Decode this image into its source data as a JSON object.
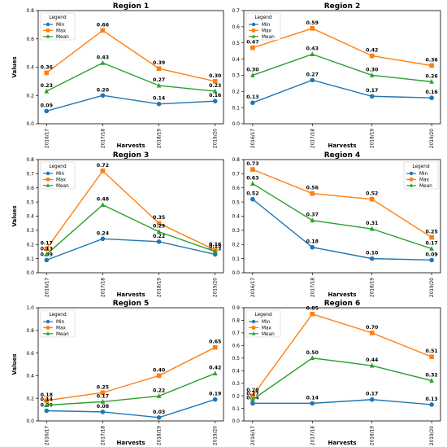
{
  "colors": {
    "min": "#1f77b4",
    "max": "#ff7f0e",
    "mean": "#2ca02c"
  },
  "chart_data": [
    {
      "type": "line",
      "title": "Region 1",
      "xlabel": "Harvests",
      "ylabel": "Values",
      "categories": [
        "2016/17",
        "2017/18",
        "2018/19",
        "2019/20"
      ],
      "ylim": [
        0,
        0.8
      ],
      "yticks": [
        "0.0",
        "0.2",
        "0.4",
        "0.6",
        "0.8"
      ],
      "legend": {
        "title": "Legend",
        "position": "top-left"
      },
      "series": [
        {
          "name": "Min",
          "values": [
            0.09,
            0.2,
            0.14,
            0.16
          ],
          "labels": [
            "0.09",
            "0.20",
            "0.14",
            "0.16"
          ]
        },
        {
          "name": "Max",
          "values": [
            0.36,
            0.66,
            0.39,
            0.3
          ],
          "labels": [
            "0.36",
            "0.66",
            "0.39",
            "0.30"
          ]
        },
        {
          "name": "Mean",
          "values": [
            0.23,
            0.43,
            0.27,
            0.23
          ],
          "labels": [
            "0.23",
            "0.43",
            "0.27",
            "0.23"
          ]
        }
      ]
    },
    {
      "type": "line",
      "title": "Region 2",
      "xlabel": "Harvests",
      "ylabel": "",
      "categories": [
        "2016/17",
        "2017/18",
        "2018/19",
        "2019/20"
      ],
      "ylim": [
        0,
        0.7
      ],
      "yticks": [
        "0.0",
        "0.1",
        "0.2",
        "0.3",
        "0.4",
        "0.5",
        "0.6",
        "0.7"
      ],
      "legend": {
        "title": "Legend",
        "position": "top-left"
      },
      "series": [
        {
          "name": "Min",
          "values": [
            0.13,
            0.27,
            0.17,
            0.16
          ],
          "labels": [
            "0.13",
            "0.27",
            "0.17",
            "0.16"
          ]
        },
        {
          "name": "Max",
          "values": [
            0.47,
            0.59,
            0.42,
            0.36
          ],
          "labels": [
            "0.47",
            "0.59",
            "0.42",
            "0.36"
          ]
        },
        {
          "name": "Mean",
          "values": [
            0.3,
            0.43,
            0.3,
            0.26
          ],
          "labels": [
            "0.30",
            "0.43",
            "0.30",
            "0.26"
          ]
        }
      ]
    },
    {
      "type": "line",
      "title": "Region 3",
      "xlabel": "Harvests",
      "ylabel": "Values",
      "categories": [
        "2016/17",
        "2017/18",
        "2018/19",
        "2019/20"
      ],
      "ylim": [
        0,
        0.8
      ],
      "yticks": [
        "0.0",
        "0.1",
        "0.2",
        "0.3",
        "0.4",
        "0.5",
        "0.6",
        "0.7",
        "0.8"
      ],
      "legend": {
        "title": "Legend",
        "position": "top-left"
      },
      "series": [
        {
          "name": "Min",
          "values": [
            0.09,
            0.24,
            0.22,
            0.13
          ],
          "labels": [
            "0.09",
            "0.24",
            "0.22",
            "0.13"
          ]
        },
        {
          "name": "Max",
          "values": [
            0.17,
            0.72,
            0.35,
            0.16
          ],
          "labels": [
            "0.17",
            "0.72",
            "0.35",
            "0.16"
          ]
        },
        {
          "name": "Mean",
          "values": [
            0.13,
            0.48,
            0.29,
            0.15
          ],
          "labels": [
            "0.13",
            "0.48",
            "0.29",
            "0.15"
          ]
        }
      ]
    },
    {
      "type": "line",
      "title": "Region 4",
      "xlabel": "Harvests",
      "ylabel": "",
      "categories": [
        "2016/17",
        "2017/18",
        "2018/19",
        "2019/20"
      ],
      "ylim": [
        0,
        0.8
      ],
      "yticks": [
        "0.0",
        "0.1",
        "0.2",
        "0.3",
        "0.4",
        "0.5",
        "0.6",
        "0.7",
        "0.8"
      ],
      "legend": {
        "title": "Legend",
        "position": "top-right"
      },
      "series": [
        {
          "name": "Min",
          "values": [
            0.52,
            0.18,
            0.1,
            0.09
          ],
          "labels": [
            "0.52",
            "0.18",
            "0.10",
            "0.09"
          ]
        },
        {
          "name": "Max",
          "values": [
            0.73,
            0.56,
            0.52,
            0.25
          ],
          "labels": [
            "0.73",
            "0.56",
            "0.52",
            "0.25"
          ]
        },
        {
          "name": "Mean",
          "values": [
            0.63,
            0.37,
            0.31,
            0.17
          ],
          "labels": [
            "0.63",
            "0.37",
            "0.31",
            "0.17"
          ]
        }
      ]
    },
    {
      "type": "line",
      "title": "Region 5",
      "xlabel": "Harvests",
      "ylabel": "Values",
      "categories": [
        "2016/17",
        "2017/18",
        "2018/19",
        "2019/20"
      ],
      "ylim": [
        0,
        1.0
      ],
      "yticks": [
        "0.0",
        "0.2",
        "0.4",
        "0.6",
        "0.8",
        "1.0"
      ],
      "legend": {
        "title": "Legend",
        "position": "top-left"
      },
      "series": [
        {
          "name": "Min",
          "values": [
            0.09,
            0.08,
            0.03,
            0.19
          ],
          "labels": [
            "0.09",
            "0.08",
            "0.03",
            "0.19"
          ]
        },
        {
          "name": "Max",
          "values": [
            0.18,
            0.25,
            0.4,
            0.65
          ],
          "labels": [
            "0.18",
            "0.25",
            "0.40",
            "0.65"
          ]
        },
        {
          "name": "Mean",
          "values": [
            0.14,
            0.17,
            0.22,
            0.42
          ],
          "labels": [
            "0.14",
            "0.17",
            "0.22",
            "0.42"
          ]
        }
      ]
    },
    {
      "type": "line",
      "title": "Region 6",
      "xlabel": "Harvests",
      "ylabel": "",
      "categories": [
        "2016/17",
        "2017/18",
        "2018/19",
        "2019/20"
      ],
      "ylim": [
        0,
        0.9
      ],
      "yticks": [
        "0.0",
        "0.1",
        "0.2",
        "0.3",
        "0.4",
        "0.5",
        "0.6",
        "0.7",
        "0.8",
        "0.9"
      ],
      "legend": {
        "title": "Legend",
        "position": "top-left"
      },
      "series": [
        {
          "name": "Min",
          "values": [
            0.14,
            0.14,
            0.17,
            0.13
          ],
          "labels": [
            "0.14",
            "0.14",
            "0.17",
            "0.13"
          ]
        },
        {
          "name": "Max",
          "values": [
            0.2,
            0.85,
            0.7,
            0.51
          ],
          "labels": [
            "0.20",
            "0.85",
            "0.70",
            "0.51"
          ]
        },
        {
          "name": "Mean",
          "values": [
            0.17,
            0.5,
            0.44,
            0.32
          ],
          "labels": [
            "0.17",
            "0.50",
            "0.44",
            "0.32"
          ]
        }
      ]
    }
  ]
}
